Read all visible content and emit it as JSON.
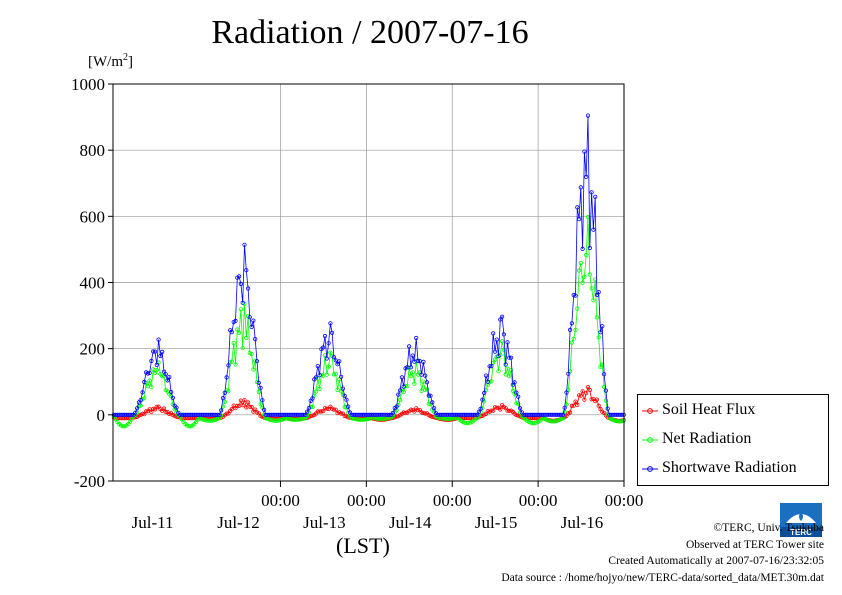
{
  "title": "Radiation / 2007-07-16",
  "unit": {
    "base": "[W/m",
    "sup": "2",
    "close": "]"
  },
  "xlabel": "(LST)",
  "legend": {
    "items": [
      {
        "name": "Soil Heat Flux",
        "color": "#ff0000"
      },
      {
        "name": "Net Radiation",
        "color": "#00ff00"
      },
      {
        "name": "Shortwave Radiation",
        "color": "#0000ff"
      }
    ]
  },
  "credits": {
    "line1": "©TERC, Univ. Tsukuba",
    "line2": "Observed at TERC Tower site",
    "line3": "Created Automatically at 2007-07-16/23:32:05",
    "line4": "Data source : /home/hojyo/new/TERC-data/sorted_data/MET.30m.dat"
  },
  "logo": {
    "text": "TERC",
    "icon": "terc-logo-icon"
  },
  "chart_data": {
    "type": "line",
    "title": "Radiation / 2007-07-16",
    "ylabel": "[W/m2]",
    "xlabel": "(LST)",
    "ylim": [
      -200,
      1000
    ],
    "yticks": [
      "-200",
      "0",
      "200",
      "400",
      "600",
      "800",
      "1000"
    ],
    "xlim_days_from_jul11_0000": [
      -0.95,
      5.0
    ],
    "xticks_time": [
      "00:00",
      "00:00",
      "00:00",
      "00:00",
      "00:00"
    ],
    "xtick_time_positions": [
      1,
      2,
      3,
      4,
      5
    ],
    "xticks_day": [
      "Jul-11",
      "Jul-12",
      "Jul-13",
      "Jul-14",
      "Jul-15",
      "Jul-16"
    ],
    "xtick_day_positions": [
      0.5,
      1.5,
      2.5,
      3.5,
      4.5,
      5.5
    ],
    "grid": true,
    "legend_position": "right",
    "series": [
      {
        "name": "Soil Heat Flux",
        "color": "#ff0000",
        "days": [
          {
            "base": -8,
            "trough": -10,
            "peak": 25,
            "spikes": []
          },
          {
            "base": -10,
            "trough": -12,
            "peak": 45,
            "spikes": []
          },
          {
            "base": -10,
            "trough": -12,
            "peak": 25,
            "spikes": []
          },
          {
            "base": -10,
            "trough": -15,
            "peak": 20,
            "spikes": []
          },
          {
            "base": -8,
            "trough": -10,
            "peak": 30,
            "spikes": []
          },
          {
            "base": -10,
            "trough": -18,
            "peak": 85,
            "spikes": []
          }
        ]
      },
      {
        "name": "Net Radiation",
        "color": "#00ff00",
        "days": [
          {
            "base": -5,
            "trough": -35,
            "peak": 160,
            "spikes": []
          },
          {
            "base": -10,
            "trough": -18,
            "peak": 340,
            "spikes": []
          },
          {
            "base": -10,
            "trough": -15,
            "peak": 190,
            "spikes": []
          },
          {
            "base": -8,
            "trough": -12,
            "peak": 165,
            "spikes": []
          },
          {
            "base": -10,
            "trough": -25,
            "peak": 225,
            "spikes": []
          },
          {
            "base": -10,
            "trough": -20,
            "peak": 605,
            "spikes": []
          }
        ]
      },
      {
        "name": "Shortwave Radiation",
        "color": "#0000ff",
        "days": [
          {
            "base": 0,
            "trough": 0,
            "peak": 230,
            "spikes": []
          },
          {
            "base": 0,
            "trough": 0,
            "peak": 520,
            "spikes": []
          },
          {
            "base": 0,
            "trough": 0,
            "peak": 280,
            "spikes": []
          },
          {
            "base": 0,
            "trough": 0,
            "peak": 235,
            "spikes": []
          },
          {
            "base": 0,
            "trough": 0,
            "peak": 300,
            "spikes": []
          },
          {
            "base": 0,
            "trough": 0,
            "peak": 915,
            "spikes": []
          }
        ]
      }
    ]
  }
}
